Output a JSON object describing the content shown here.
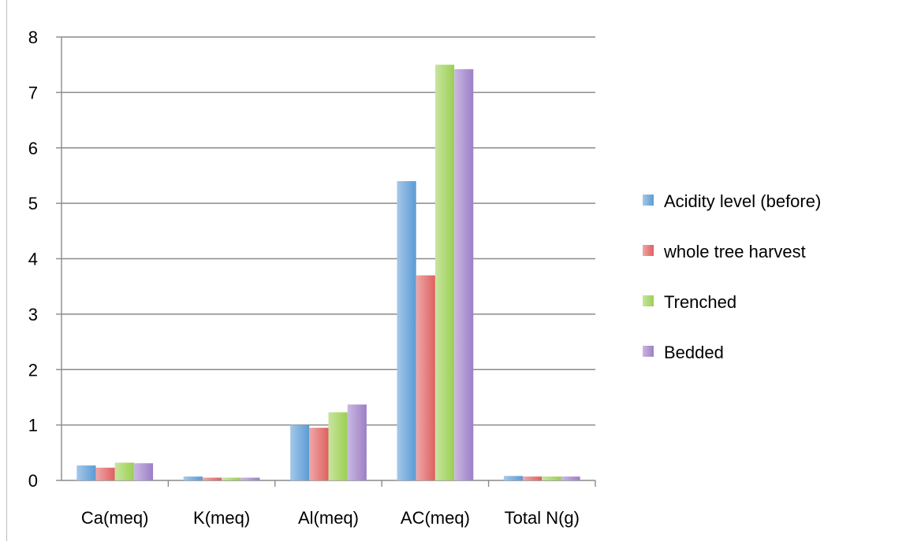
{
  "chart_data": {
    "type": "bar",
    "title": "",
    "xlabel": "",
    "ylabel": "",
    "categories": [
      "Ca(meq)",
      "K(meq)",
      "Al(meq)",
      "AC(meq)",
      "Total N(g)"
    ],
    "series": [
      {
        "name": "Acidity level (before)",
        "values": [
          0.27,
          0.07,
          1.0,
          5.4,
          0.08
        ],
        "color": "#5b9bd5"
      },
      {
        "name": "whole tree harvest",
        "values": [
          0.23,
          0.05,
          0.95,
          3.7,
          0.07
        ],
        "color": "#e06060"
      },
      {
        "name": "Trenched",
        "values": [
          0.32,
          0.05,
          1.23,
          7.5,
          0.07
        ],
        "color": "#9bcf53"
      },
      {
        "name": "Bedded",
        "values": [
          0.31,
          0.05,
          1.37,
          7.42,
          0.07
        ],
        "color": "#9c7fc7"
      }
    ],
    "ylim": [
      0,
      8
    ],
    "yticks": [
      0,
      1,
      2,
      3,
      4,
      5,
      6,
      7,
      8
    ],
    "grid": true,
    "legend_position": "right"
  }
}
